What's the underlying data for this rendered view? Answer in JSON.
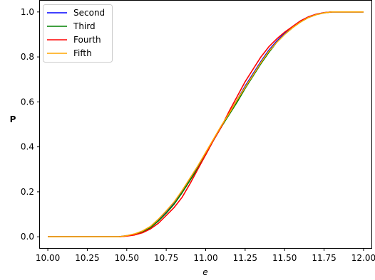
{
  "chart_data": {
    "type": "line",
    "xlabel": "e",
    "ylabel": "P",
    "xlim": [
      9.95,
      12.05
    ],
    "ylim": [
      -0.05,
      1.05
    ],
    "x_ticks": [
      10.0,
      10.25,
      10.5,
      10.75,
      11.0,
      11.25,
      11.5,
      11.75,
      12.0
    ],
    "x_tick_labels": [
      "10.00",
      "10.25",
      "10.50",
      "10.75",
      "11.00",
      "11.25",
      "11.50",
      "11.75",
      "12.00"
    ],
    "y_ticks": [
      0.0,
      0.2,
      0.4,
      0.6,
      0.8,
      1.0
    ],
    "y_tick_labels": [
      "0.0",
      "0.2",
      "0.4",
      "0.6",
      "0.8",
      "1.0"
    ],
    "grid": false,
    "legend_position": "top-left",
    "series": [
      {
        "name": "Second",
        "color": "#0000ff",
        "x": [
          10.0,
          10.45,
          10.5,
          10.55,
          10.6,
          10.65,
          10.7,
          10.75,
          10.8,
          10.85,
          10.9,
          10.95,
          11.0,
          11.05,
          11.1,
          11.15,
          11.2,
          11.25,
          11.3,
          11.35,
          11.4,
          11.45,
          11.5,
          11.55,
          11.6,
          11.65,
          11.7,
          11.75,
          11.8,
          12.0
        ],
        "y": [
          0.0,
          0.0,
          0.005,
          0.012,
          0.025,
          0.045,
          0.075,
          0.11,
          0.15,
          0.2,
          0.255,
          0.31,
          0.37,
          0.43,
          0.49,
          0.55,
          0.61,
          0.67,
          0.725,
          0.78,
          0.83,
          0.87,
          0.905,
          0.935,
          0.96,
          0.978,
          0.99,
          0.997,
          1.0,
          1.0
        ]
      },
      {
        "name": "Third",
        "color": "#008000",
        "x": [
          10.0,
          10.45,
          10.5,
          10.55,
          10.6,
          10.65,
          10.7,
          10.75,
          10.8,
          10.85,
          10.9,
          10.95,
          11.0,
          11.05,
          11.1,
          11.15,
          11.2,
          11.25,
          11.3,
          11.35,
          11.4,
          11.45,
          11.5,
          11.55,
          11.6,
          11.65,
          11.7,
          11.75,
          11.8,
          12.0
        ],
        "y": [
          0.0,
          0.0,
          0.004,
          0.01,
          0.022,
          0.04,
          0.07,
          0.105,
          0.145,
          0.195,
          0.25,
          0.305,
          0.365,
          0.43,
          0.49,
          0.545,
          0.6,
          0.66,
          0.715,
          0.77,
          0.82,
          0.865,
          0.9,
          0.93,
          0.955,
          0.975,
          0.988,
          0.996,
          1.0,
          1.0
        ]
      },
      {
        "name": "Fourth",
        "color": "#ff0000",
        "x": [
          10.0,
          10.45,
          10.5,
          10.55,
          10.6,
          10.65,
          10.7,
          10.75,
          10.8,
          10.85,
          10.9,
          10.95,
          11.0,
          11.05,
          11.1,
          11.15,
          11.2,
          11.25,
          11.3,
          11.35,
          11.4,
          11.45,
          11.5,
          11.55,
          11.6,
          11.65,
          11.7,
          11.75,
          11.8,
          12.0
        ],
        "y": [
          0.0,
          0.0,
          0.003,
          0.008,
          0.018,
          0.035,
          0.06,
          0.095,
          0.13,
          0.175,
          0.235,
          0.3,
          0.365,
          0.43,
          0.49,
          0.56,
          0.625,
          0.69,
          0.745,
          0.8,
          0.845,
          0.88,
          0.91,
          0.935,
          0.96,
          0.978,
          0.99,
          0.997,
          1.0,
          1.0
        ]
      },
      {
        "name": "Fifth",
        "color": "#ffa500",
        "x": [
          10.0,
          10.45,
          10.5,
          10.55,
          10.6,
          10.65,
          10.7,
          10.75,
          10.8,
          10.85,
          10.9,
          10.95,
          11.0,
          11.05,
          11.1,
          11.15,
          11.2,
          11.25,
          11.3,
          11.35,
          11.4,
          11.45,
          11.5,
          11.55,
          11.6,
          11.65,
          11.7,
          11.75,
          11.8,
          12.0
        ],
        "y": [
          0.0,
          0.0,
          0.005,
          0.013,
          0.026,
          0.046,
          0.078,
          0.115,
          0.155,
          0.205,
          0.26,
          0.315,
          0.375,
          0.435,
          0.495,
          0.55,
          0.61,
          0.665,
          0.72,
          0.775,
          0.825,
          0.865,
          0.9,
          0.93,
          0.955,
          0.975,
          0.988,
          0.996,
          1.0,
          1.0
        ]
      }
    ]
  }
}
